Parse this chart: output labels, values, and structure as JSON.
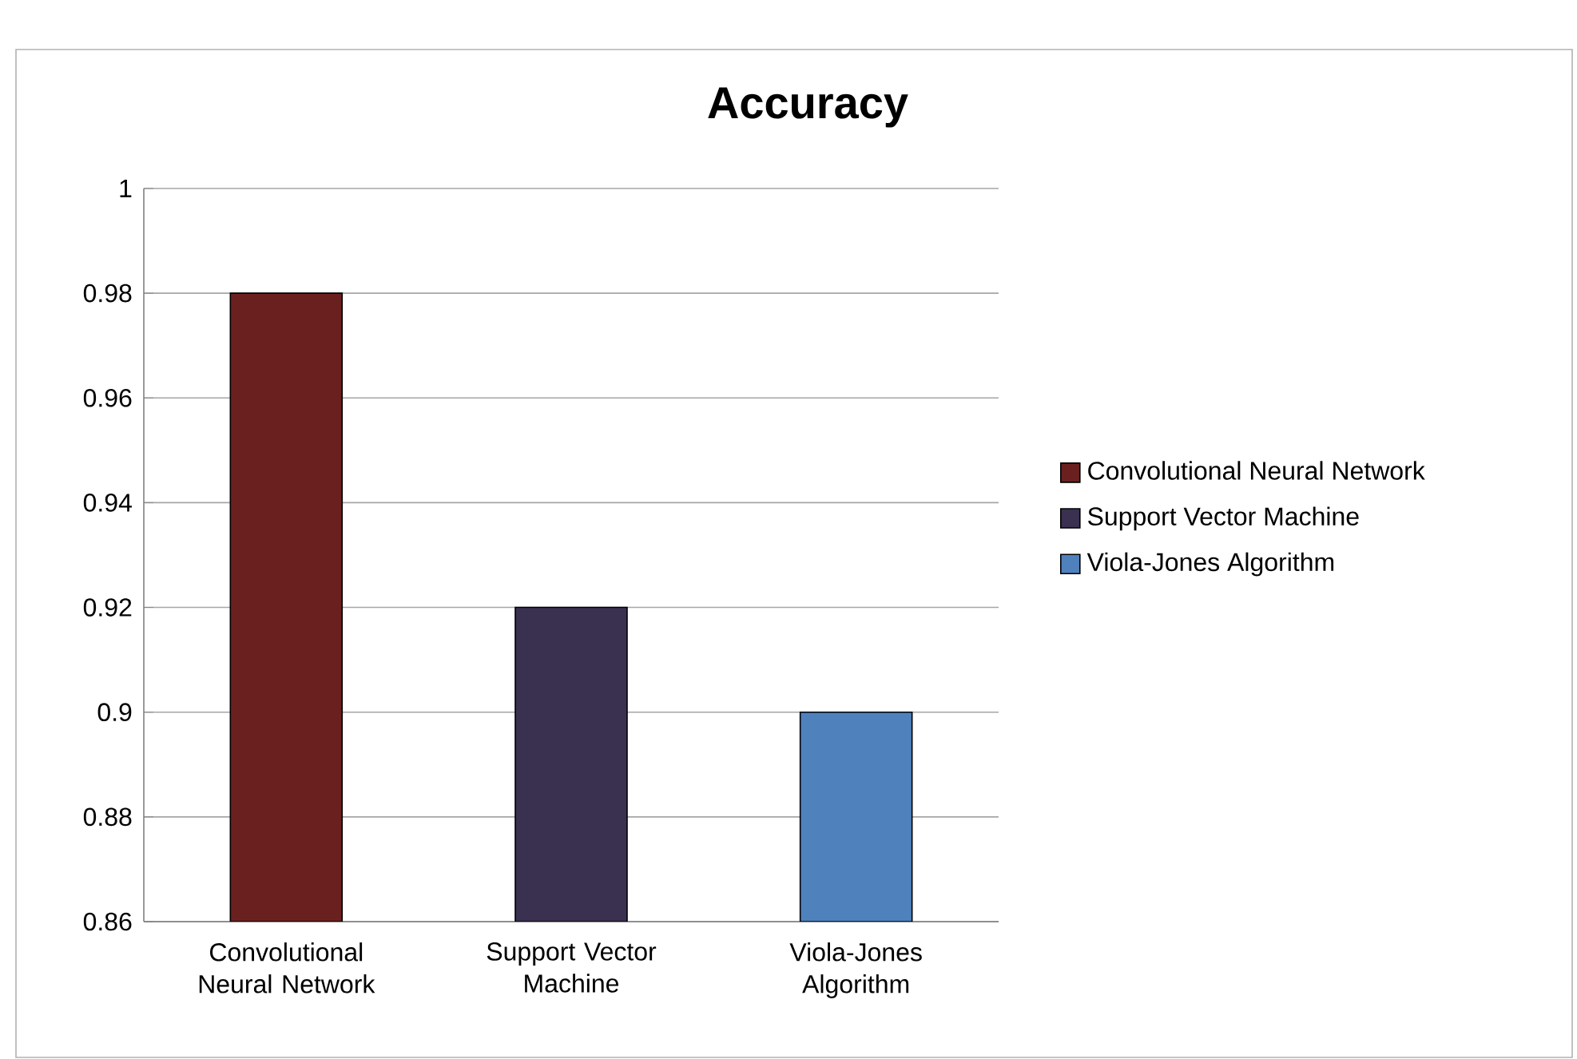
{
  "chart_data": {
    "type": "bar",
    "title": "Accuracy",
    "categories": [
      "Convolutional Neural Network",
      "Support Vector Machine",
      "Viola-Jones Algorithm"
    ],
    "series": [
      {
        "name": "Convolutional Neural Network",
        "color": "#6b2020",
        "values": [
          0.98,
          null,
          null
        ]
      },
      {
        "name": "Support Vector Machine",
        "color": "#3a3151",
        "values": [
          null,
          0.92,
          null
        ]
      },
      {
        "name": "Viola-Jones Algorithm",
        "color": "#4f81bd",
        "values": [
          null,
          null,
          0.9
        ]
      }
    ],
    "ylim": [
      0.86,
      1
    ],
    "yticks": [
      0.86,
      0.88,
      0.9,
      0.92,
      0.94,
      0.96,
      0.98,
      1
    ],
    "grid": "y",
    "legend": "right"
  }
}
